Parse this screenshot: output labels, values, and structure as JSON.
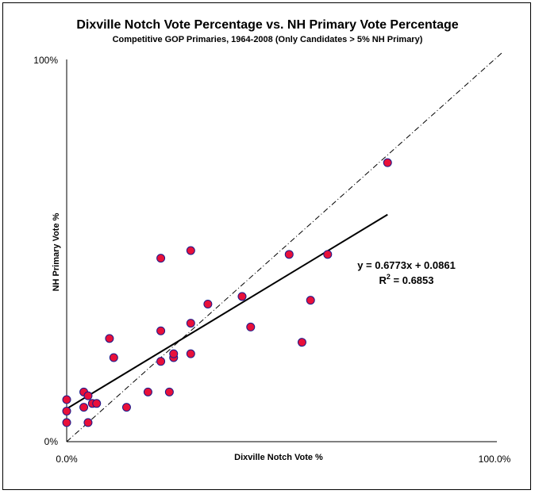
{
  "chart_data": {
    "type": "scatter",
    "title": "Dixville Notch Vote Percentage vs. NH Primary Vote Percentage",
    "subtitle": "Competitive GOP Primaries, 1964-2008 (Only Candidates > 5% NH Primary)",
    "xlabel": "Dixville Notch Vote %",
    "ylabel": "NH Primary Vote %",
    "xlim": [
      0,
      1
    ],
    "ylim": [
      0,
      1
    ],
    "x_tick_labels": [
      "0.0%",
      "100.0%"
    ],
    "y_tick_labels": [
      "0%",
      "100%"
    ],
    "grid": false,
    "legend": "none",
    "point_color": "#e8103a",
    "point_edge_color": "#1a1a8c",
    "points": [
      {
        "x": 0.0,
        "y": 0.11
      },
      {
        "x": 0.0,
        "y": 0.08
      },
      {
        "x": 0.0,
        "y": 0.05
      },
      {
        "x": 0.04,
        "y": 0.13
      },
      {
        "x": 0.05,
        "y": 0.12
      },
      {
        "x": 0.04,
        "y": 0.09
      },
      {
        "x": 0.06,
        "y": 0.1
      },
      {
        "x": 0.07,
        "y": 0.1
      },
      {
        "x": 0.05,
        "y": 0.05
      },
      {
        "x": 0.1,
        "y": 0.27
      },
      {
        "x": 0.11,
        "y": 0.22
      },
      {
        "x": 0.14,
        "y": 0.09
      },
      {
        "x": 0.19,
        "y": 0.13
      },
      {
        "x": 0.22,
        "y": 0.48
      },
      {
        "x": 0.22,
        "y": 0.29
      },
      {
        "x": 0.22,
        "y": 0.21
      },
      {
        "x": 0.24,
        "y": 0.13
      },
      {
        "x": 0.25,
        "y": 0.22
      },
      {
        "x": 0.25,
        "y": 0.23
      },
      {
        "x": 0.29,
        "y": 0.5
      },
      {
        "x": 0.29,
        "y": 0.31
      },
      {
        "x": 0.29,
        "y": 0.23
      },
      {
        "x": 0.33,
        "y": 0.36
      },
      {
        "x": 0.41,
        "y": 0.38
      },
      {
        "x": 0.43,
        "y": 0.3
      },
      {
        "x": 0.52,
        "y": 0.49
      },
      {
        "x": 0.55,
        "y": 0.26
      },
      {
        "x": 0.57,
        "y": 0.37
      },
      {
        "x": 0.61,
        "y": 0.49
      },
      {
        "x": 0.75,
        "y": 0.73
      }
    ],
    "trendline": {
      "slope": 0.6773,
      "intercept": 0.0861,
      "x_range": [
        0,
        0.75
      ]
    },
    "identity_line": {
      "x_range": [
        0,
        1.0
      ]
    },
    "annotations": {
      "equation": "y = 0.6773x + 0.0861",
      "r2_prefix": "R",
      "r2_sup": "2",
      "r2_suffix": " = 0.6853"
    }
  }
}
